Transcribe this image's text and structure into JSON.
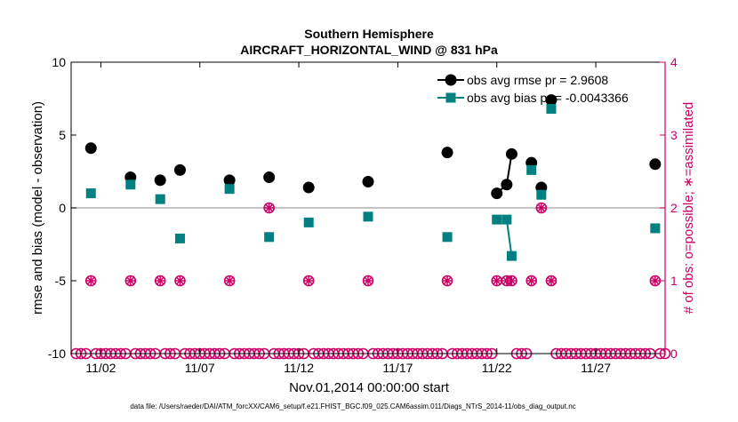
{
  "chart_data": {
    "type": "line",
    "title": "Southern Hemisphere",
    "subtitle": "AIRCRAFT_HORIZONTAL_WIND @ 831 hPa",
    "xlabel": "Nov.01,2014 00:00:00 start",
    "ylabel": "rmse and bias (model - observation)",
    "y2label": "# of obs: o=possible; ∗=assimilated",
    "footer": "data file: /Users/raeder/DAI/ATM_forcXX/CAM6_setup/f.e21.FHIST_BGC.f09_025.CAM6assim.011/Diags_NTrS_2014-11/obs_diag_output.nc",
    "xlim": [
      0.5,
      30.5
    ],
    "ylim": [
      -10,
      10
    ],
    "y2lim": [
      0,
      4
    ],
    "x_ticks": [
      2,
      7,
      12,
      17,
      22,
      27
    ],
    "x_tick_labels": [
      "11/02",
      "11/07",
      "11/12",
      "11/17",
      "11/22",
      "11/27"
    ],
    "y_ticks": [
      -10,
      -5,
      0,
      5,
      10
    ],
    "y_tick_labels": [
      "-10",
      "-5",
      "0",
      "5",
      "10"
    ],
    "y2_ticks": [
      0,
      1,
      2,
      3,
      4
    ],
    "y2_tick_labels": [
      "0",
      "1",
      "2",
      "3",
      "4"
    ],
    "zero_line": 0,
    "grid": false,
    "legend_position": "top-right",
    "colors": {
      "rmse": "#000000",
      "bias": "#008080",
      "obs_count": "#cc0066",
      "zero_line": "#b0b0b0",
      "axis": "#000000"
    },
    "series": [
      {
        "name": "obs avg rmse pr = 2.9608",
        "axis": "left",
        "marker": "circle",
        "x": [
          1.5,
          3.5,
          5.0,
          6.0,
          8.5,
          10.5,
          12.5,
          15.5,
          19.5,
          22.0,
          22.5,
          22.75,
          23.75,
          24.25,
          24.75,
          30.0
        ],
        "y": [
          4.1,
          2.1,
          1.9,
          2.6,
          1.9,
          2.1,
          1.4,
          1.8,
          3.8,
          1.0,
          1.6,
          3.7,
          3.1,
          1.4,
          7.4,
          3.0
        ],
        "segments": [
          [
            9,
            10,
            11
          ]
        ]
      },
      {
        "name": "obs avg bias pr = -0.0043366",
        "axis": "left",
        "marker": "square",
        "x": [
          1.5,
          3.5,
          5.0,
          6.0,
          8.5,
          10.5,
          12.5,
          15.5,
          19.5,
          22.0,
          22.5,
          22.75,
          23.75,
          24.25,
          24.75,
          30.0
        ],
        "y": [
          1.0,
          1.6,
          0.6,
          -2.1,
          1.3,
          -2.0,
          -1.0,
          -0.6,
          -2.0,
          -0.8,
          -0.8,
          -3.3,
          2.6,
          0.9,
          6.8,
          -1.4
        ],
        "segments": [
          [
            10,
            11
          ]
        ]
      },
      {
        "name": "obs possible",
        "axis": "right",
        "marker": "circle-open",
        "x": [
          1.5,
          3.5,
          5.0,
          6.0,
          8.5,
          10.5,
          12.5,
          15.5,
          19.5,
          22.0,
          22.5,
          22.75,
          23.75,
          24.25,
          24.75,
          30.0
        ],
        "y": [
          1,
          1,
          1,
          1,
          1,
          2,
          1,
          1,
          1,
          1,
          1,
          1,
          1,
          2,
          1,
          1
        ]
      },
      {
        "name": "obs assimilated",
        "axis": "right",
        "marker": "asterisk",
        "x": [
          1.5,
          3.5,
          5.0,
          6.0,
          8.5,
          10.5,
          12.5,
          15.5,
          19.5,
          22.0,
          22.5,
          22.75,
          23.75,
          24.25,
          24.75,
          30.0
        ],
        "y": [
          1,
          1,
          1,
          1,
          1,
          2,
          1,
          1,
          1,
          1,
          1,
          1,
          1,
          2,
          1,
          1
        ]
      },
      {
        "name": "zero counts",
        "axis": "right",
        "marker": "circle-open",
        "x": [
          0.75,
          1.0,
          1.25,
          1.75,
          2.0,
          2.25,
          2.5,
          2.75,
          3.0,
          3.25,
          3.75,
          4.0,
          4.25,
          4.5,
          4.75,
          5.25,
          5.5,
          5.75,
          6.25,
          6.5,
          6.75,
          7.0,
          7.25,
          7.5,
          7.75,
          8.0,
          8.25,
          8.75,
          9.0,
          9.25,
          9.5,
          9.75,
          10.0,
          10.25,
          10.75,
          11.0,
          11.25,
          11.5,
          11.75,
          12.0,
          12.25,
          12.75,
          13.0,
          13.25,
          13.5,
          13.75,
          14.0,
          14.25,
          14.5,
          14.75,
          15.0,
          15.25,
          15.75,
          16.0,
          16.25,
          16.5,
          16.75,
          17.0,
          17.25,
          17.5,
          17.75,
          18.0,
          18.25,
          18.5,
          18.75,
          19.0,
          19.25,
          19.75,
          20.0,
          20.25,
          20.5,
          20.75,
          21.0,
          21.25,
          21.5,
          21.75,
          23.0,
          23.25,
          23.5,
          25.0,
          25.25,
          25.5,
          25.75,
          26.0,
          26.25,
          26.5,
          26.75,
          27.0,
          27.25,
          27.5,
          27.75,
          28.0,
          28.25,
          28.5,
          28.75,
          29.0,
          29.25,
          29.5,
          29.75,
          30.25,
          30.5
        ],
        "y": [
          0,
          0,
          0,
          0,
          0,
          0,
          0,
          0,
          0,
          0,
          0,
          0,
          0,
          0,
          0,
          0,
          0,
          0,
          0,
          0,
          0,
          0,
          0,
          0,
          0,
          0,
          0,
          0,
          0,
          0,
          0,
          0,
          0,
          0,
          0,
          0,
          0,
          0,
          0,
          0,
          0,
          0,
          0,
          0,
          0,
          0,
          0,
          0,
          0,
          0,
          0,
          0,
          0,
          0,
          0,
          0,
          0,
          0,
          0,
          0,
          0,
          0,
          0,
          0,
          0,
          0,
          0,
          0,
          0,
          0,
          0,
          0,
          0,
          0,
          0,
          0,
          0,
          0,
          0,
          0,
          0,
          0,
          0,
          0,
          0,
          0,
          0,
          0,
          0,
          0,
          0,
          0,
          0,
          0,
          0,
          0,
          0,
          0,
          0,
          0,
          0
        ]
      }
    ]
  }
}
